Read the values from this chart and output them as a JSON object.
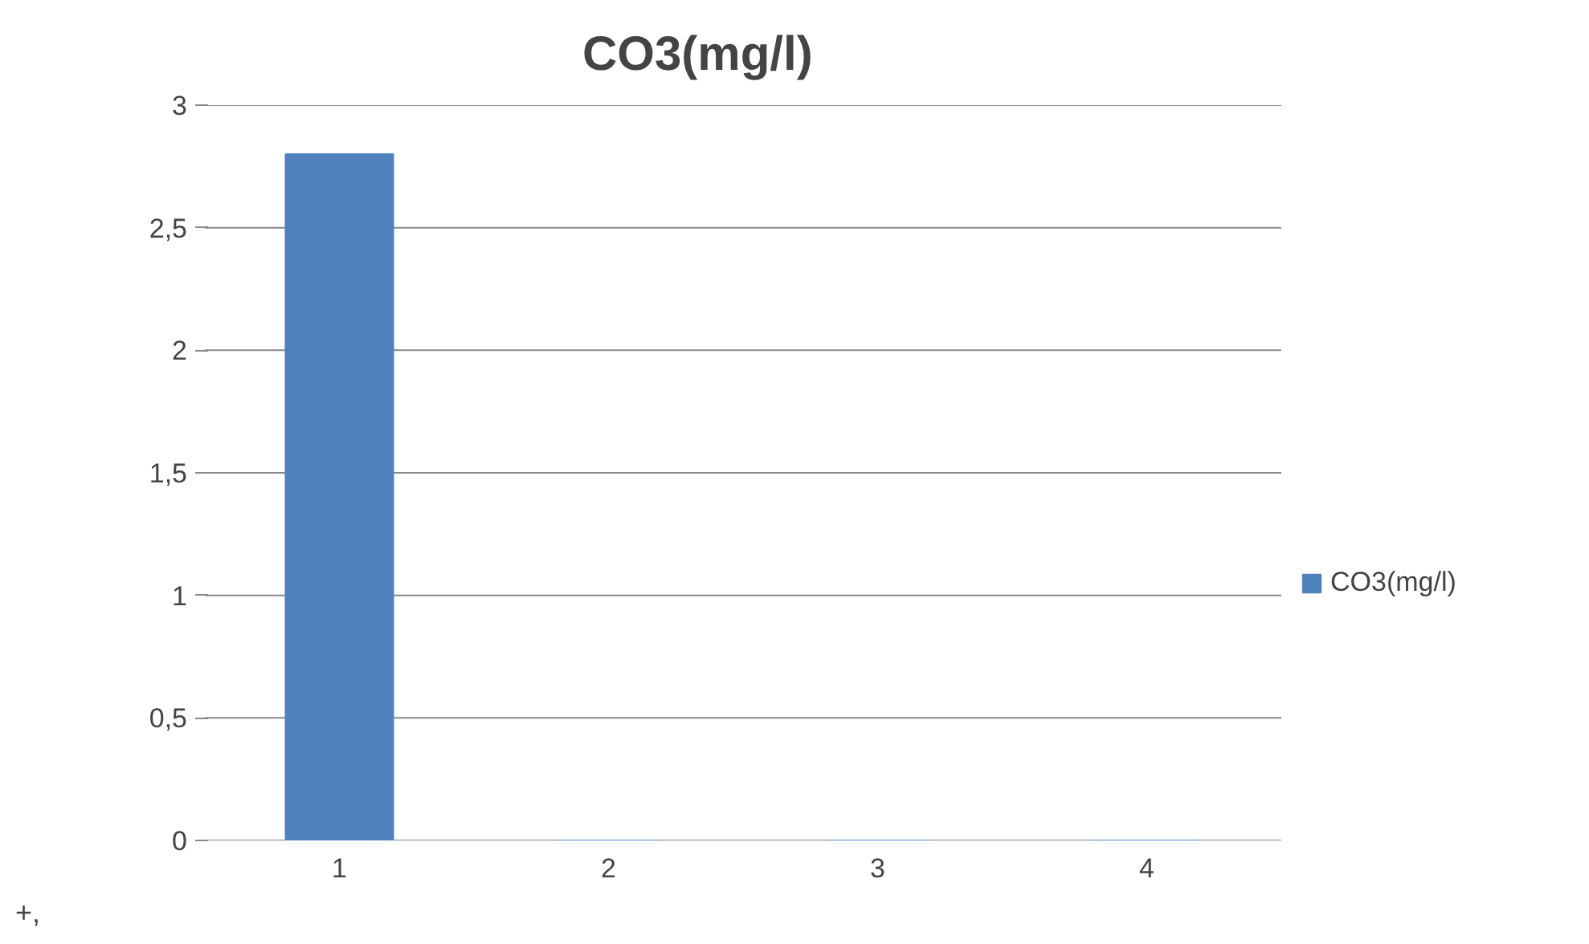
{
  "chart_data": {
    "type": "bar",
    "title": "CO3(mg/l)",
    "categories": [
      "1",
      "2",
      "3",
      "4"
    ],
    "series": [
      {
        "name": "CO3(mg/l)",
        "color": "#4f81bd",
        "values": [
          2.8,
          0,
          0,
          0
        ]
      }
    ],
    "ylim": [
      0,
      3
    ],
    "yticks": [
      0,
      {
        "value": 0.5,
        "label": "0,5"
      },
      1,
      {
        "value": 1.5,
        "label": "1,5"
      },
      2,
      {
        "value": 2.5,
        "label": "2,5"
      },
      3
    ],
    "grid": "y",
    "legend": "right",
    "annotations": [
      "+,"
    ]
  }
}
